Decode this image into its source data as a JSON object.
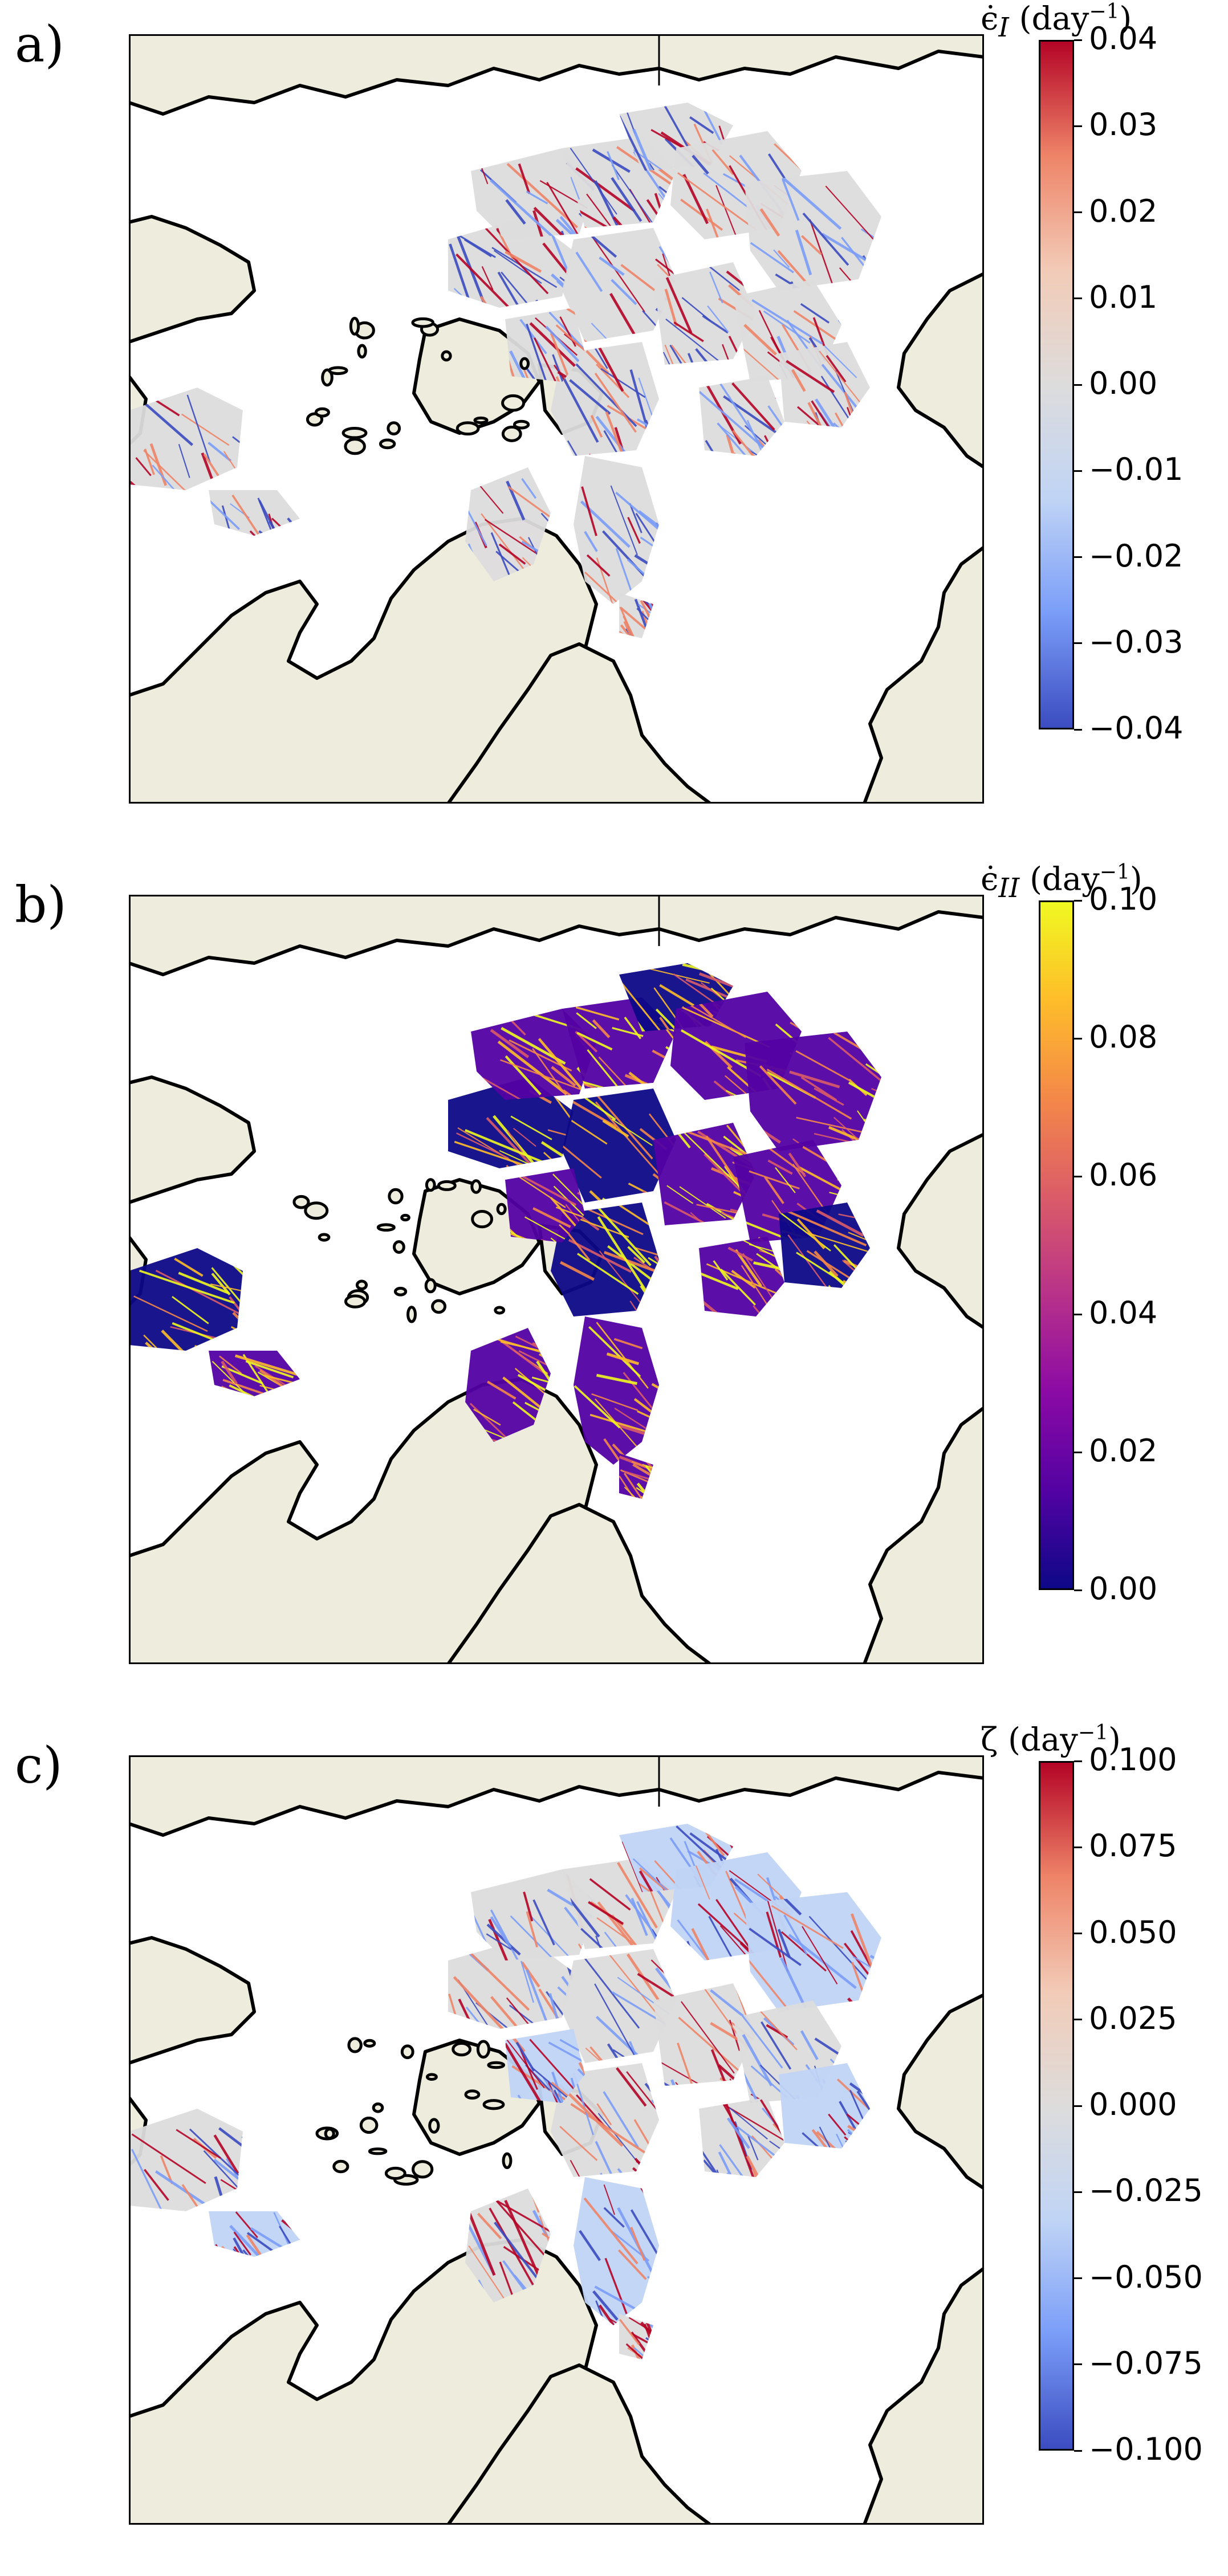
{
  "panels": [
    {
      "label": "a)",
      "quantity_symbol": "ϵ̇",
      "quantity_subscript": "I",
      "units": "(day",
      "units_exp": "−1",
      "colormap": "coolwarm",
      "colors": [
        "#3b4cc0",
        "#7a9df8",
        "#c0d4f5",
        "#dddcdc",
        "#f2cbb7",
        "#ee8468",
        "#b40426"
      ],
      "ticks": [
        "0.04",
        "0.03",
        "0.02",
        "0.01",
        "0.00",
        "−0.01",
        "−0.02",
        "−0.03",
        "−0.04"
      ]
    },
    {
      "label": "b)",
      "quantity_symbol": "ϵ̇",
      "quantity_subscript": "II",
      "units": "(day",
      "units_exp": "−1",
      "colormap": "plasma",
      "colors": [
        "#0d0887",
        "#5302a3",
        "#8b0aa5",
        "#b83289",
        "#db5c68",
        "#f48849",
        "#febd2a",
        "#f0f921"
      ],
      "ticks": [
        "0.10",
        "0.08",
        "0.06",
        "0.04",
        "0.02",
        "0.00"
      ]
    },
    {
      "label": "c)",
      "quantity_symbol": "ζ",
      "quantity_subscript": "",
      "units": "(day",
      "units_exp": "−1",
      "colormap": "coolwarm",
      "colors": [
        "#3b4cc0",
        "#7a9df8",
        "#c0d4f5",
        "#dddcdc",
        "#f2cbb7",
        "#ee8468",
        "#b40426"
      ],
      "ticks": [
        "0.100",
        "0.075",
        "0.050",
        "0.025",
        "0.000",
        "−0.025",
        "−0.050",
        "−0.075",
        "−0.100"
      ]
    }
  ],
  "land_color": "#eeecdc",
  "ocean_color": "#ffffff",
  "ice_neutral_color": "#dcdcdc"
}
